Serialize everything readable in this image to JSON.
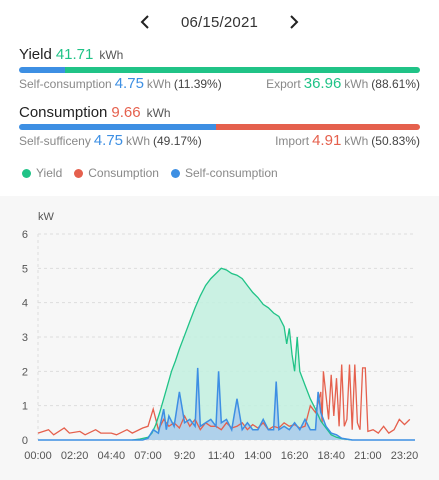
{
  "date_nav": {
    "date": "06/15/2021"
  },
  "yield": {
    "label": "Yield",
    "value": "41.71",
    "unit": "kWh",
    "self_consumption": {
      "label": "Self-consumption",
      "value": "4.75",
      "unit": "kWh",
      "pct": "(11.39%)"
    },
    "export": {
      "label": "Export",
      "value": "36.96",
      "unit": "kWh",
      "pct": "(88.61%)"
    },
    "split_fraction": 0.1139
  },
  "consumption": {
    "label": "Consumption",
    "value": "9.66",
    "unit": "kWh",
    "self_sufficiency": {
      "label": "Self-sufficeny",
      "value": "4.75",
      "unit": "kWh",
      "pct": "(49.17%)"
    },
    "import": {
      "label": "Import",
      "value": "4.91",
      "unit": "kWh",
      "pct": "(50.83%)"
    },
    "split_fraction": 0.4917
  },
  "colors": {
    "yield": "#20c387",
    "consumption": "#e5604d",
    "self_consumption": "#3d8fe3",
    "yield_fill": "#c2f0df",
    "selfc_fill": "#a8c9ec",
    "grid": "#dddddd"
  },
  "legend": [
    {
      "label": "Yield",
      "color": "#20c387"
    },
    {
      "label": "Consumption",
      "color": "#e5604d"
    },
    {
      "label": "Self-consumption",
      "color": "#3d8fe3"
    }
  ],
  "chart_data": {
    "type": "area",
    "ylabel": "kW",
    "ylim": [
      0,
      6
    ],
    "yticks": [
      "0",
      "1",
      "2",
      "3",
      "4",
      "5",
      "6"
    ],
    "xlim": [
      "00:00",
      "24:00"
    ],
    "xticks": [
      "00:00",
      "02:20",
      "04:40",
      "07:00",
      "9:20",
      "11:40",
      "14:00",
      "16:20",
      "18:40",
      "21:00",
      "23:20"
    ],
    "grid": true,
    "series": [
      {
        "name": "Yield",
        "x": [
          "06:00",
          "06:30",
          "07:00",
          "07:15",
          "07:30",
          "07:45",
          "08:00",
          "08:15",
          "08:30",
          "08:45",
          "09:00",
          "09:20",
          "09:40",
          "10:00",
          "10:20",
          "10:40",
          "11:00",
          "11:20",
          "11:40",
          "12:00",
          "12:20",
          "12:40",
          "13:00",
          "13:20",
          "13:40",
          "14:00",
          "14:20",
          "14:40",
          "15:00",
          "15:20",
          "15:40",
          "15:50",
          "16:00",
          "16:10",
          "16:20",
          "16:30",
          "16:40",
          "17:00",
          "17:20",
          "17:40",
          "18:00",
          "18:20",
          "18:40",
          "19:00",
          "19:20",
          "19:40",
          "20:00"
        ],
        "values": [
          0,
          0.03,
          0.08,
          0.2,
          0.45,
          0.8,
          1.2,
          1.6,
          2.0,
          2.3,
          2.65,
          3.05,
          3.45,
          3.85,
          4.2,
          4.5,
          4.7,
          4.85,
          5.0,
          4.95,
          4.85,
          4.8,
          4.7,
          4.5,
          4.3,
          4.15,
          3.95,
          3.85,
          3.7,
          3.6,
          3.3,
          2.8,
          3.25,
          2.5,
          2.0,
          3.0,
          2.0,
          1.6,
          1.2,
          0.9,
          0.55,
          0.35,
          0.15,
          0.08,
          0.04,
          0.02,
          0
        ]
      },
      {
        "name": "Consumption",
        "x": [
          "00:00",
          "00:40",
          "01:00",
          "01:40",
          "02:00",
          "02:40",
          "03:00",
          "03:40",
          "04:00",
          "04:40",
          "05:00",
          "05:40",
          "06:00",
          "06:40",
          "07:00",
          "07:20",
          "07:40",
          "08:00",
          "08:20",
          "08:40",
          "09:00",
          "09:20",
          "09:40",
          "10:00",
          "10:20",
          "10:40",
          "11:00",
          "11:20",
          "11:40",
          "12:00",
          "12:20",
          "12:40",
          "13:00",
          "13:20",
          "13:40",
          "14:00",
          "14:20",
          "14:40",
          "15:00",
          "15:20",
          "15:40",
          "16:00",
          "16:20",
          "16:40",
          "17:00",
          "17:20",
          "17:40",
          "18:00",
          "18:05",
          "18:10",
          "18:30",
          "18:40",
          "18:50",
          "19:00",
          "19:10",
          "19:20",
          "19:30",
          "19:40",
          "19:50",
          "20:00",
          "20:10",
          "20:20",
          "20:30",
          "20:40",
          "20:50",
          "21:00",
          "21:20",
          "21:40",
          "22:00",
          "22:20",
          "22:40",
          "23:00",
          "23:20",
          "23:40"
        ],
        "values": [
          0.2,
          0.3,
          0.15,
          0.35,
          0.2,
          0.25,
          0.15,
          0.3,
          0.2,
          0.2,
          0.15,
          0.3,
          0.2,
          0.35,
          0.4,
          0.9,
          0.3,
          0.6,
          0.4,
          0.5,
          0.35,
          0.7,
          0.4,
          0.6,
          0.3,
          0.5,
          0.4,
          0.4,
          0.3,
          0.5,
          0.35,
          0.4,
          0.5,
          0.3,
          0.45,
          0.35,
          0.5,
          0.3,
          0.4,
          0.35,
          0.5,
          0.4,
          0.45,
          0.35,
          0.4,
          1.0,
          0.8,
          1.4,
          0.5,
          2.0,
          0.6,
          1.9,
          0.7,
          1.8,
          0.4,
          2.2,
          0.4,
          0.6,
          2.2,
          0.3,
          2.2,
          0.5,
          0.3,
          2.1,
          2.1,
          0.25,
          0.3,
          0.2,
          0.4,
          0.2,
          0.3,
          0.6,
          0.45,
          0.6
        ]
      },
      {
        "name": "Self-consumption",
        "x": [
          "00:00",
          "06:40",
          "07:00",
          "07:20",
          "07:40",
          "08:00",
          "08:10",
          "08:20",
          "08:40",
          "09:00",
          "09:20",
          "09:40",
          "10:00",
          "10:10",
          "10:20",
          "10:40",
          "11:00",
          "11:20",
          "11:30",
          "11:40",
          "12:00",
          "12:20",
          "12:40",
          "13:00",
          "13:20",
          "13:40",
          "14:00",
          "14:20",
          "14:40",
          "15:00",
          "15:10",
          "15:20",
          "15:40",
          "16:00",
          "16:20",
          "16:40",
          "17:00",
          "17:20",
          "17:40",
          "17:50",
          "18:00",
          "18:20",
          "18:40",
          "19:00",
          "19:20",
          "20:00",
          "21:00",
          "24:00"
        ],
        "values": [
          0,
          0,
          0.05,
          0.3,
          0.2,
          0.9,
          0.3,
          0.7,
          0.4,
          1.4,
          0.5,
          0.6,
          0.4,
          2.1,
          0.4,
          0.5,
          0.6,
          0.4,
          2.0,
          0.5,
          0.6,
          0.3,
          1.2,
          0.3,
          0.5,
          0.3,
          0.3,
          0.6,
          0.3,
          0.3,
          1.7,
          0.3,
          0.4,
          0.3,
          0.5,
          0.3,
          0.6,
          0.3,
          0.3,
          1.4,
          0.8,
          0.4,
          0.2,
          0.15,
          0.05,
          0,
          0,
          0
        ]
      }
    ]
  }
}
